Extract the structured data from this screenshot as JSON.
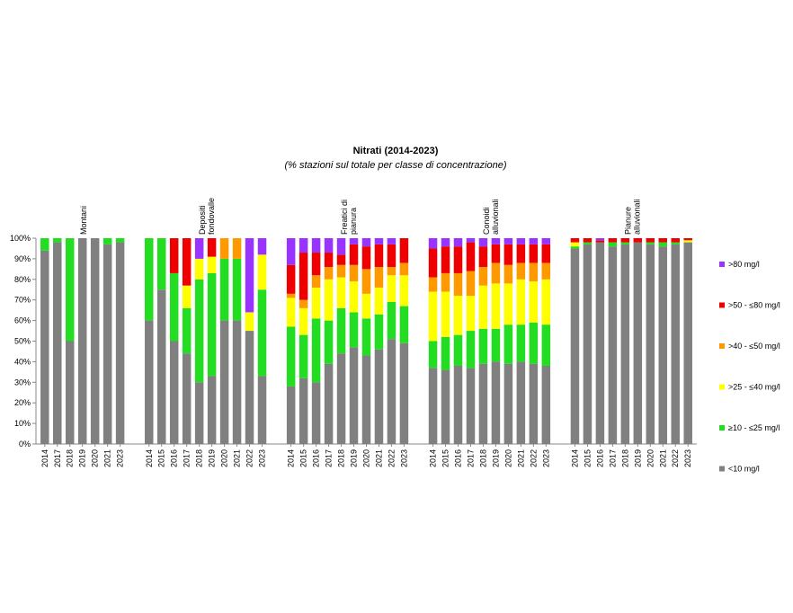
{
  "chart_data": {
    "type": "bar",
    "stacked": true,
    "title": "Nitrati (2014-2023)",
    "subtitle": "(% stazioni sul totale per classe di concentrazione)",
    "ylim": [
      0,
      100
    ],
    "yticks": [
      "0%",
      "10%",
      "20%",
      "30%",
      "40%",
      "50%",
      "60%",
      "70%",
      "80%",
      "90%",
      "100%"
    ],
    "grid": false,
    "legend_position": "right",
    "classes": [
      {
        "name": "<10 mg/l",
        "color": "#808080"
      },
      {
        "name": "≥10 - ≤25 mg/l",
        "color": "#22dd22"
      },
      {
        "name": ">25 - ≤40 mg/l",
        "color": "#ffff00"
      },
      {
        "name": ">40 - ≤50 mg/l",
        "color": "#ff9900"
      },
      {
        "name": ">50 - ≤80 mg/l",
        "color": "#ee0000"
      },
      {
        "name": ">80 mg/l",
        "color": "#9933ff"
      }
    ],
    "legend_order": [
      ">80 mg/l",
      ">50 - ≤80 mg/l",
      ">40 - ≤50 mg/l",
      ">25 - ≤40 mg/l",
      "≥10 - ≤25 mg/l",
      "<10 mg/l"
    ],
    "groups": [
      {
        "name": "Montani",
        "years": [
          "2014",
          "2017",
          "2018",
          "2019",
          "2020",
          "2021",
          "2023"
        ],
        "values": [
          [
            94,
            6,
            0,
            0,
            0,
            0
          ],
          [
            98,
            2,
            0,
            0,
            0,
            0
          ],
          [
            50,
            50,
            0,
            0,
            0,
            0
          ],
          [
            100,
            0,
            0,
            0,
            0,
            0
          ],
          [
            100,
            0,
            0,
            0,
            0,
            0
          ],
          [
            97,
            3,
            0,
            0,
            0,
            0
          ],
          [
            98,
            2,
            0,
            0,
            0,
            0
          ]
        ]
      },
      {
        "name": "Depositi fondovalle",
        "years": [
          "2014",
          "2015",
          "2016",
          "2017",
          "2018",
          "2019",
          "2020",
          "2021",
          "2022",
          "2023"
        ],
        "values": [
          [
            60,
            40,
            0,
            0,
            0,
            0
          ],
          [
            75,
            25,
            0,
            0,
            0,
            0
          ],
          [
            50,
            33,
            0,
            0,
            17,
            0
          ],
          [
            44,
            22,
            11,
            0,
            23,
            0
          ],
          [
            30,
            50,
            10,
            0,
            0,
            10
          ],
          [
            33,
            50,
            8,
            0,
            9,
            0
          ],
          [
            60,
            30,
            0,
            10,
            0,
            0
          ],
          [
            60,
            30,
            0,
            10,
            0,
            0
          ],
          [
            55,
            0,
            9,
            0,
            0,
            36
          ],
          [
            33,
            42,
            17,
            0,
            0,
            8
          ]
        ]
      },
      {
        "name": "Freatici di pianura",
        "years": [
          "2014",
          "2015",
          "2016",
          "2017",
          "2018",
          "2019",
          "2020",
          "2021",
          "2022",
          "2023"
        ],
        "values": [
          [
            28,
            29,
            14,
            2,
            14,
            13
          ],
          [
            32,
            21,
            13,
            4,
            23,
            7
          ],
          [
            30,
            31,
            15,
            6,
            11,
            7
          ],
          [
            39,
            21,
            20,
            6,
            7,
            7
          ],
          [
            44,
            22,
            15,
            6,
            5,
            8
          ],
          [
            47,
            17,
            15,
            8,
            10,
            3
          ],
          [
            43,
            18,
            12,
            12,
            11,
            4
          ],
          [
            46,
            17,
            13,
            10,
            11,
            3
          ],
          [
            51,
            18,
            13,
            4,
            11,
            3
          ],
          [
            49,
            18,
            15,
            6,
            12,
            0
          ]
        ]
      },
      {
        "name": "Conoidi alluvionali",
        "years": [
          "2014",
          "2015",
          "2016",
          "2017",
          "2018",
          "2019",
          "2020",
          "2021",
          "2022",
          "2023"
        ],
        "values": [
          [
            37,
            13,
            24,
            7,
            14,
            5
          ],
          [
            36,
            16,
            22,
            9,
            13,
            4
          ],
          [
            38,
            15,
            19,
            11,
            13,
            4
          ],
          [
            37,
            18,
            17,
            12,
            14,
            2
          ],
          [
            39,
            17,
            21,
            9,
            10,
            4
          ],
          [
            40,
            16,
            22,
            10,
            9,
            3
          ],
          [
            39,
            19,
            20,
            9,
            10,
            3
          ],
          [
            40,
            18,
            22,
            8,
            9,
            3
          ],
          [
            39,
            20,
            20,
            9,
            9,
            3
          ],
          [
            38,
            20,
            22,
            8,
            9,
            3
          ]
        ]
      },
      {
        "name": "Pianure alluvionali",
        "years": [
          "2014",
          "2015",
          "2016",
          "2017",
          "2018",
          "2019",
          "2020",
          "2021",
          "2022",
          "2023"
        ],
        "values": [
          [
            95,
            1,
            2,
            0,
            2,
            0
          ],
          [
            97,
            1,
            0,
            0,
            2,
            0
          ],
          [
            98,
            0,
            0,
            0,
            1,
            1
          ],
          [
            96,
            2,
            0,
            0,
            2,
            0
          ],
          [
            97,
            1,
            0,
            0,
            2,
            0
          ],
          [
            98,
            0,
            0,
            0,
            2,
            0
          ],
          [
            97,
            1,
            0,
            0,
            2,
            0
          ],
          [
            96,
            2,
            0,
            0,
            2,
            0
          ],
          [
            97,
            1,
            0,
            0,
            2,
            0
          ],
          [
            98,
            0,
            1,
            0,
            1,
            0
          ]
        ]
      }
    ]
  }
}
